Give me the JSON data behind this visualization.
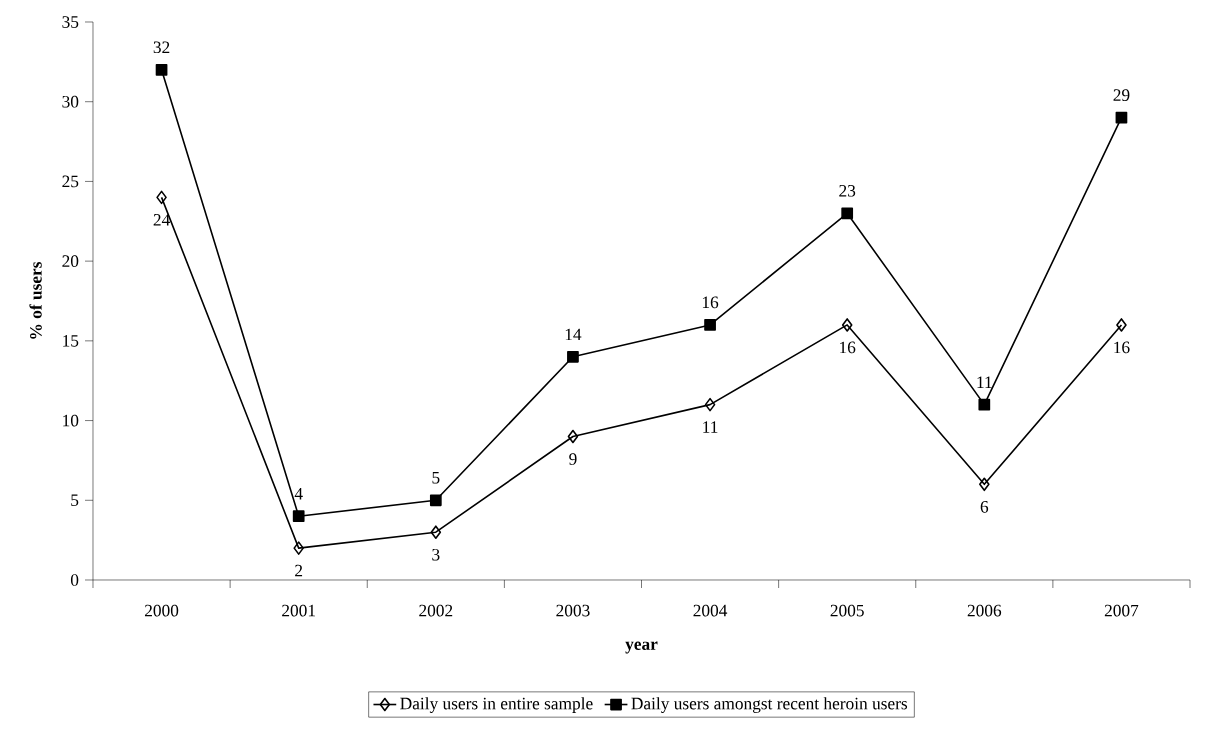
{
  "chart_data": {
    "type": "line",
    "xlabel": "year",
    "ylabel": "% of users",
    "categories": [
      "2000",
      "2001",
      "2002",
      "2003",
      "2004",
      "2005",
      "2006",
      "2007"
    ],
    "series": [
      {
        "name": "Daily users in entire sample",
        "color": "#000000",
        "marker": "diamond",
        "values": [
          24,
          2,
          3,
          9,
          11,
          16,
          6,
          16
        ]
      },
      {
        "name": "Daily users amongst recent heroin users",
        "color": "#000000",
        "marker": "square",
        "values": [
          32,
          4,
          5,
          14,
          16,
          23,
          11,
          29
        ]
      }
    ],
    "ylim": [
      0,
      35
    ],
    "yticks": [
      0,
      5,
      10,
      15,
      20,
      25,
      30,
      35
    ],
    "grid": false,
    "legend": "bottom",
    "data_labels": true,
    "line_style": "solid"
  }
}
